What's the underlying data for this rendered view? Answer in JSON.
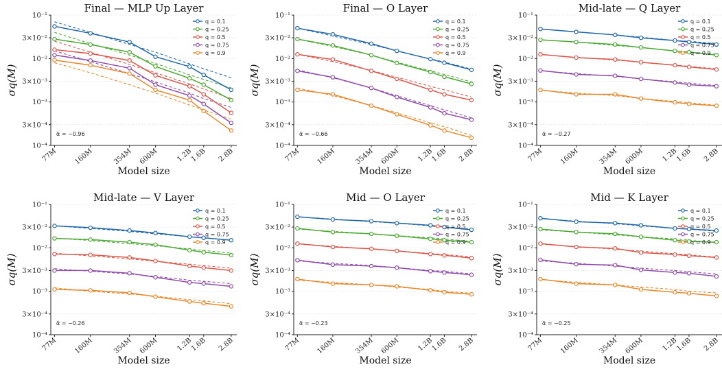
{
  "colors": {
    "q0.1": "#2066a8",
    "q0.25": "#4aa832",
    "q0.5": "#d9574a",
    "q0.75": "#8e4aa8",
    "q0.9": "#e8862a"
  },
  "legend_labels": [
    "q = 0.1",
    "q = 0.25",
    "q = 0.5",
    "q = 0.75",
    "q = 0.9"
  ],
  "x_tick_labels": [
    "77M",
    "160M",
    "354M",
    "600M",
    "1.2B",
    "1.6B",
    "2.8B"
  ],
  "y_tick_labels": [
    "10⁻⁴",
    "3×10⁻⁴",
    "10⁻³",
    "3×10⁻³",
    "10⁻²",
    "3×10⁻²",
    "10⁻¹"
  ],
  "chart_data": [
    {
      "type": "line",
      "title": "Final — MLP Up Layer",
      "xlabel": "Model size",
      "ylabel": "σq(M)",
      "annotation": "ᾱ = −0.96",
      "x": [
        77,
        160,
        354,
        600,
        1200,
        1600,
        2800
      ],
      "xscale": "log",
      "yscale": "log",
      "ylim": [
        0.0001,
        0.1
      ],
      "series": [
        {
          "name": "q = 0.1",
          "values": [
            0.055,
            0.038,
            0.024,
            0.011,
            0.0065,
            0.0042,
            0.0019
          ],
          "fit": [
            0.07,
            0.04,
            0.021,
            0.014,
            0.0075,
            0.0058,
            0.0036
          ]
        },
        {
          "name": "q = 0.25",
          "values": [
            0.028,
            0.021,
            0.014,
            0.0066,
            0.0035,
            0.0025,
            0.0011
          ],
          "fit": [
            0.04,
            0.022,
            0.012,
            0.0077,
            0.0042,
            0.0033,
            0.0021
          ]
        },
        {
          "name": "q = 0.5",
          "values": [
            0.016,
            0.013,
            0.009,
            0.0041,
            0.0023,
            0.0015,
            0.00056
          ],
          "fit": [
            0.025,
            0.014,
            0.0073,
            0.0047,
            0.0026,
            0.002,
            0.0012
          ]
        },
        {
          "name": "q = 0.75",
          "values": [
            0.012,
            0.009,
            0.006,
            0.0025,
            0.0014,
            0.0009,
            0.00033
          ],
          "fit": [
            0.015,
            0.0085,
            0.0045,
            0.0029,
            0.0016,
            0.0012,
            0.00075
          ]
        },
        {
          "name": "q = 0.9",
          "values": [
            0.0092,
            0.007,
            0.0045,
            0.0019,
            0.0011,
            0.00062,
            0.00022
          ],
          "fit": [
            0.008,
            0.0047,
            0.0025,
            0.0016,
            0.00085,
            0.00065,
            0.0004
          ]
        }
      ]
    },
    {
      "type": "line",
      "title": "Final — O Layer",
      "xlabel": "Model size",
      "ylabel": "σq(M)",
      "annotation": "ᾱ = −0.66",
      "x": [
        77,
        160,
        354,
        600,
        1200,
        1600,
        2800
      ],
      "xscale": "log",
      "yscale": "log",
      "ylim": [
        0.0001,
        0.1
      ],
      "series": [
        {
          "name": "q = 0.1",
          "values": [
            0.05,
            0.036,
            0.022,
            0.015,
            0.0097,
            0.008,
            0.0055
          ],
          "fit": [
            0.05,
            0.033,
            0.021,
            0.015,
            0.0098,
            0.0083,
            0.0057
          ]
        },
        {
          "name": "q = 0.25",
          "values": [
            0.028,
            0.02,
            0.012,
            0.0079,
            0.0049,
            0.0038,
            0.0026
          ],
          "fit": [
            0.028,
            0.019,
            0.012,
            0.0082,
            0.0052,
            0.0043,
            0.0029
          ]
        },
        {
          "name": "q = 0.5",
          "values": [
            0.0125,
            0.0095,
            0.0052,
            0.0034,
            0.0019,
            0.0015,
            0.0011
          ],
          "fit": [
            0.0125,
            0.0085,
            0.0053,
            0.0037,
            0.0023,
            0.0019,
            0.0013
          ]
        },
        {
          "name": "q = 0.75",
          "values": [
            0.0052,
            0.0037,
            0.0021,
            0.0013,
            0.00075,
            0.00055,
            0.00039
          ],
          "fit": [
            0.0055,
            0.0036,
            0.0021,
            0.0014,
            0.00082,
            0.00066,
            0.00043
          ]
        },
        {
          "name": "q = 0.9",
          "values": [
            0.0019,
            0.0015,
            0.00082,
            0.00052,
            0.00029,
            0.00022,
            0.00015
          ],
          "fit": [
            0.0021,
            0.0014,
            0.00083,
            0.00056,
            0.00033,
            0.00027,
            0.00017
          ]
        }
      ]
    },
    {
      "type": "line",
      "title": "Mid-late — Q Layer",
      "xlabel": "Model size",
      "ylabel": "σq(M)",
      "annotation": "ᾱ = −0.27",
      "x": [
        77,
        160,
        354,
        600,
        1200,
        1600,
        2800
      ],
      "xscale": "log",
      "yscale": "log",
      "ylim": [
        0.0001,
        0.1
      ],
      "series": [
        {
          "name": "q = 0.1",
          "values": [
            0.048,
            0.041,
            0.035,
            0.03,
            0.026,
            0.024,
            0.021
          ],
          "fit": [
            0.048,
            0.041,
            0.035,
            0.031,
            0.026,
            0.025,
            0.022
          ]
        },
        {
          "name": "q = 0.25",
          "values": [
            0.027,
            0.024,
            0.021,
            0.018,
            0.015,
            0.014,
            0.012
          ],
          "fit": [
            0.027,
            0.024,
            0.02,
            0.018,
            0.015,
            0.014,
            0.0125
          ]
        },
        {
          "name": "q = 0.5",
          "values": [
            0.0125,
            0.0105,
            0.0095,
            0.0082,
            0.007,
            0.0064,
            0.0056
          ],
          "fit": [
            0.0123,
            0.0107,
            0.0092,
            0.0083,
            0.0071,
            0.0066,
            0.0058
          ]
        },
        {
          "name": "q = 0.75",
          "values": [
            0.0053,
            0.0043,
            0.004,
            0.0034,
            0.0028,
            0.0025,
            0.0023
          ],
          "fit": [
            0.0052,
            0.0045,
            0.0039,
            0.0034,
            0.0029,
            0.0027,
            0.0024
          ]
        },
        {
          "name": "q = 0.9",
          "values": [
            0.0019,
            0.0015,
            0.0015,
            0.0012,
            0.00098,
            0.0009,
            0.00082
          ],
          "fit": [
            0.00185,
            0.0016,
            0.0014,
            0.0012,
            0.00103,
            0.00096,
            0.00084
          ]
        }
      ]
    },
    {
      "type": "line",
      "title": "Mid-late — V Layer",
      "xlabel": "Model size",
      "ylabel": "σq(M)",
      "annotation": "ᾱ = −0.26",
      "x": [
        77,
        160,
        354,
        600,
        1200,
        1600,
        2800
      ],
      "xscale": "log",
      "yscale": "log",
      "ylim": [
        0.0001,
        0.1
      ],
      "series": [
        {
          "name": "q = 0.1",
          "values": [
            0.032,
            0.029,
            0.025,
            0.022,
            0.018,
            0.017,
            0.015
          ],
          "fit": [
            0.032,
            0.028,
            0.024,
            0.021,
            0.018,
            0.017,
            0.015
          ]
        },
        {
          "name": "q = 0.25",
          "values": [
            0.0165,
            0.0155,
            0.0135,
            0.0118,
            0.0088,
            0.0079,
            0.0068
          ],
          "fit": [
            0.0168,
            0.0147,
            0.0125,
            0.0112,
            0.0094,
            0.0087,
            0.0076
          ]
        },
        {
          "name": "q = 0.5",
          "values": [
            0.0072,
            0.0069,
            0.006,
            0.005,
            0.0038,
            0.0035,
            0.003
          ],
          "fit": [
            0.0075,
            0.0065,
            0.0056,
            0.0049,
            0.0042,
            0.0039,
            0.0034
          ]
        },
        {
          "name": "q = 0.75",
          "values": [
            0.003,
            0.003,
            0.0026,
            0.0021,
            0.0016,
            0.0015,
            0.0013
          ],
          "fit": [
            0.0033,
            0.0029,
            0.0025,
            0.0022,
            0.0018,
            0.0017,
            0.0015
          ]
        },
        {
          "name": "q = 0.9",
          "values": [
            0.0011,
            0.00105,
            0.00092,
            0.00075,
            0.00058,
            0.00053,
            0.00045
          ],
          "fit": [
            0.0012,
            0.001,
            0.00087,
            0.00077,
            0.00064,
            0.0006,
            0.00052
          ]
        }
      ]
    },
    {
      "type": "line",
      "title": "Mid — O Layer",
      "xlabel": "Model size",
      "ylabel": "σq(M)",
      "annotation": "ᾱ = −0.23",
      "x": [
        77,
        160,
        354,
        600,
        1200,
        1600,
        2800
      ],
      "xscale": "log",
      "yscale": "log",
      "ylim": [
        0.0001,
        0.1
      ],
      "series": [
        {
          "name": "q = 0.1",
          "values": [
            0.052,
            0.045,
            0.041,
            0.037,
            0.033,
            0.03,
            0.026
          ],
          "fit": [
            0.052,
            0.046,
            0.04,
            0.037,
            0.032,
            0.03,
            0.027
          ]
        },
        {
          "name": "q = 0.25",
          "values": [
            0.028,
            0.023,
            0.021,
            0.019,
            0.016,
            0.015,
            0.0135
          ],
          "fit": [
            0.027,
            0.024,
            0.021,
            0.019,
            0.017,
            0.016,
            0.014
          ]
        },
        {
          "name": "q = 0.5",
          "values": [
            0.0125,
            0.0105,
            0.0095,
            0.0085,
            0.0072,
            0.0067,
            0.0058
          ],
          "fit": [
            0.0123,
            0.0108,
            0.0094,
            0.0085,
            0.0074,
            0.007,
            0.0062
          ]
        },
        {
          "name": "q = 0.75",
          "values": [
            0.0052,
            0.0041,
            0.0038,
            0.0035,
            0.0029,
            0.0027,
            0.0024
          ],
          "fit": [
            0.005,
            0.0044,
            0.0039,
            0.0035,
            0.003,
            0.0029,
            0.0025
          ]
        },
        {
          "name": "q = 0.9",
          "values": [
            0.0019,
            0.0015,
            0.0014,
            0.0013,
            0.00105,
            0.00095,
            0.00085
          ],
          "fit": [
            0.0018,
            0.0016,
            0.0014,
            0.00125,
            0.0011,
            0.001,
            0.0009
          ]
        }
      ]
    },
    {
      "type": "line",
      "title": "Mid — K Layer",
      "xlabel": "Model size",
      "ylabel": "σq(M)",
      "annotation": "ᾱ = −0.25",
      "x": [
        77,
        160,
        354,
        600,
        1200,
        1600,
        2800
      ],
      "xscale": "log",
      "yscale": "log",
      "ylim": [
        0.0001,
        0.1
      ],
      "series": [
        {
          "name": "q = 0.1",
          "values": [
            0.048,
            0.04,
            0.037,
            0.033,
            0.028,
            0.027,
            0.025
          ],
          "fit": [
            0.047,
            0.041,
            0.036,
            0.032,
            0.028,
            0.027,
            0.024
          ]
        },
        {
          "name": "q = 0.25",
          "values": [
            0.027,
            0.023,
            0.021,
            0.018,
            0.015,
            0.014,
            0.0135
          ],
          "fit": [
            0.026,
            0.023,
            0.02,
            0.018,
            0.016,
            0.015,
            0.013
          ]
        },
        {
          "name": "q = 0.5",
          "values": [
            0.0125,
            0.0105,
            0.0097,
            0.0078,
            0.007,
            0.0066,
            0.006
          ],
          "fit": [
            0.0122,
            0.0107,
            0.0093,
            0.0084,
            0.0073,
            0.0069,
            0.0061
          ]
        },
        {
          "name": "q = 0.75",
          "values": [
            0.0053,
            0.0042,
            0.004,
            0.0031,
            0.0027,
            0.0026,
            0.0022
          ],
          "fit": [
            0.005,
            0.0044,
            0.0038,
            0.0034,
            0.003,
            0.0028,
            0.0025
          ]
        },
        {
          "name": "q = 0.9",
          "values": [
            0.0019,
            0.0015,
            0.0014,
            0.0011,
            0.00095,
            0.0009,
            0.00078
          ],
          "fit": [
            0.00185,
            0.0016,
            0.0014,
            0.00125,
            0.0011,
            0.001,
            0.00092
          ]
        }
      ]
    }
  ]
}
